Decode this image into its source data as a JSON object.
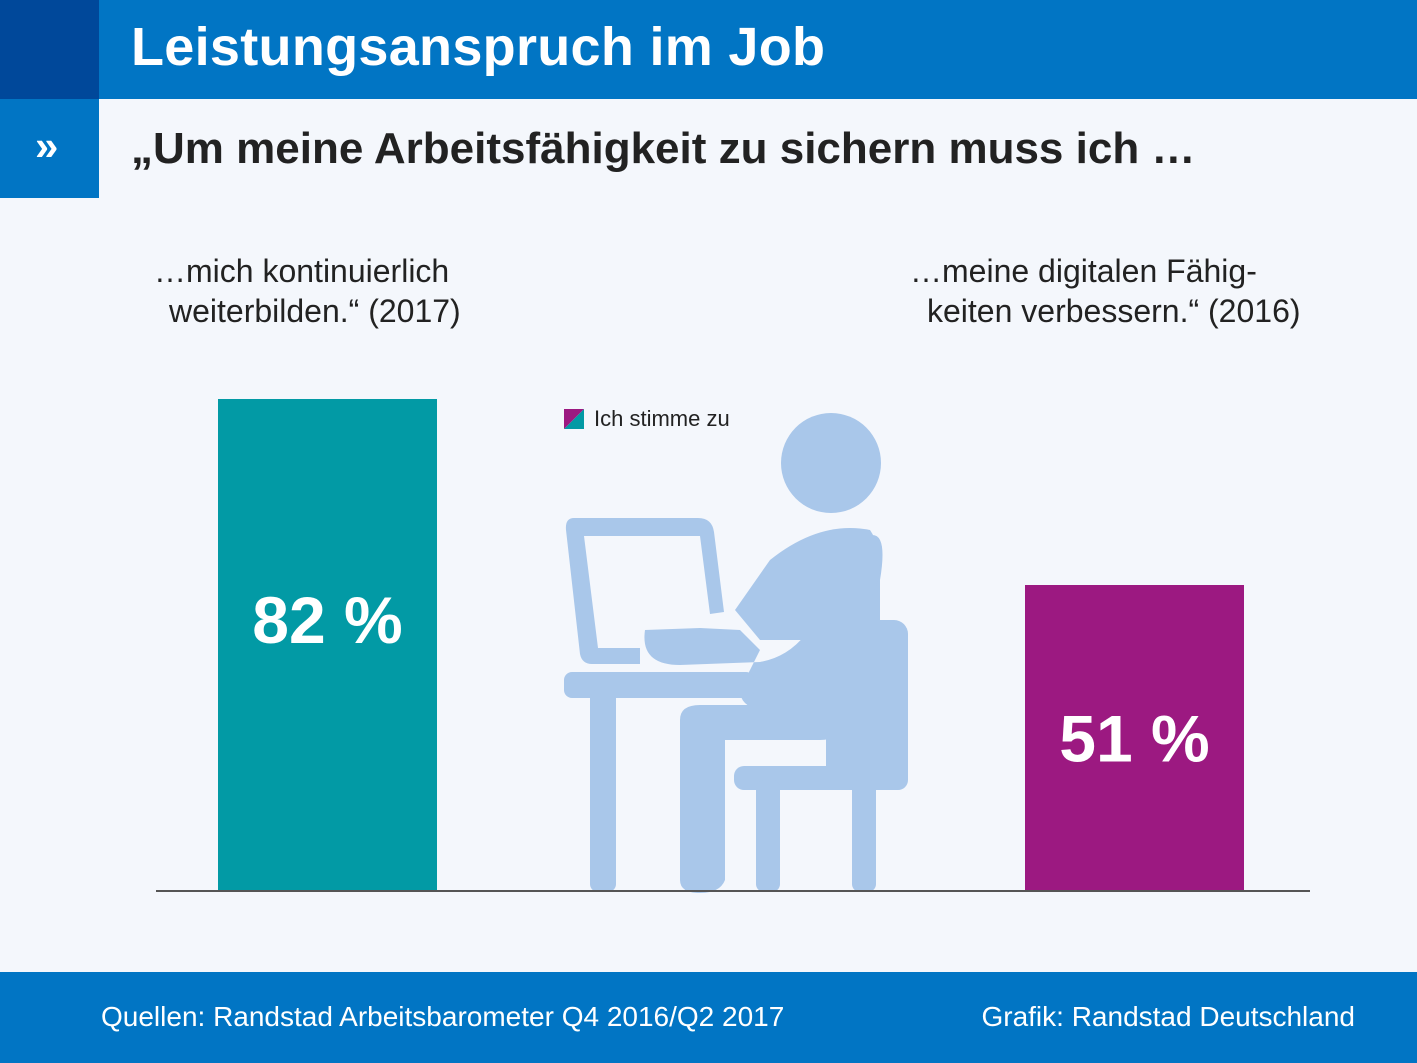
{
  "header": {
    "title": "Leistungsanspruch im Job",
    "marker": "»",
    "subtitle": "„Um meine Arbeitsfähigkeit zu sichern muss ich …"
  },
  "chart_data": {
    "type": "bar",
    "categories": [
      {
        "line1": "…mich kontinuierlich",
        "line2": "weiterbilden.“ (2017)"
      },
      {
        "line1": "…meine digitalen Fähig-",
        "line2": "keiten verbessern.“ (2016)"
      }
    ],
    "values": [
      82,
      51
    ],
    "value_labels": [
      "82 %",
      "51 %"
    ],
    "colors": [
      "#029aa5",
      "#9c1981"
    ],
    "legend": "Ich stimme zu",
    "ylim": [
      0,
      100
    ],
    "grid": false,
    "legend_position": "top-center"
  },
  "illustration": {
    "icon": "person-at-computer-icon",
    "color": "#a9c7ea"
  },
  "footer": {
    "source": "Quellen: Randstad Arbeitsbarometer Q4 2016/Q2 2017",
    "credit": "Grafik: Randstad Deutschland"
  },
  "colors": {
    "header_dark": "#00489a",
    "header_blue": "#0175c4",
    "background": "#f4f7fc",
    "axis": "#555555"
  }
}
